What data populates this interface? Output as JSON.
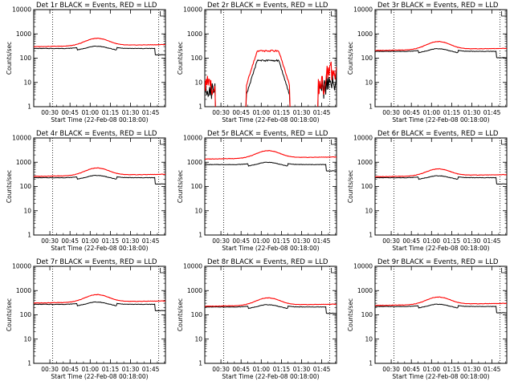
{
  "figure": {
    "y_label": "Counts/sec",
    "x_label": "Start Time (22-Feb-08 00:18:00)",
    "x_ticks": [
      "00:30",
      "00:45",
      "01:00",
      "01:15",
      "01:30",
      "01:45"
    ],
    "y_ticks": [
      "1",
      "10",
      "100",
      "1000",
      "10000"
    ],
    "colors": {
      "events": "#000000",
      "lld": "#ff0000",
      "axes": "#000000",
      "background": "#ffffff"
    }
  },
  "chart_data": [
    {
      "type": "line",
      "title": "Det 1r BLACK = Events, RED = LLD",
      "xlabel": "Start Time (22-Feb-08 00:18:00)",
      "ylabel": "Counts/sec",
      "yscale": "log",
      "ylim": [
        1,
        10000
      ],
      "xlim_minutes": [
        0,
        98
      ],
      "vlines_minutes": [
        14,
        93
      ],
      "kind": "normal",
      "events_base": 250,
      "lld_base": 330,
      "bump": 2.0
    },
    {
      "type": "line",
      "title": "Det 2r BLACK = Events, RED = LLD",
      "xlabel": "Start Time (22-Feb-08 00:18:00)",
      "ylabel": "Counts/sec",
      "yscale": "log",
      "ylim": [
        1,
        10000
      ],
      "xlim_minutes": [
        0,
        98
      ],
      "vlines_minutes": [
        14,
        93
      ],
      "kind": "noisy",
      "events_peak": 80,
      "lld_peak": 200
    },
    {
      "type": "line",
      "title": "Det 3r BLACK = Events, RED = LLD",
      "xlabel": "Start Time (22-Feb-08 00:18:00)",
      "ylabel": "Counts/sec",
      "yscale": "log",
      "ylim": [
        1,
        10000
      ],
      "xlim_minutes": [
        0,
        98
      ],
      "vlines_minutes": [
        14,
        93
      ],
      "kind": "normal",
      "events_base": 190,
      "lld_base": 230,
      "bump": 2.1
    },
    {
      "type": "line",
      "title": "Det 4r BLACK = Events, RED = LLD",
      "xlabel": "Start Time (22-Feb-08 00:18:00)",
      "ylabel": "Counts/sec",
      "yscale": "log",
      "ylim": [
        1,
        10000
      ],
      "xlim_minutes": [
        0,
        98
      ],
      "vlines_minutes": [
        14,
        93
      ],
      "kind": "normal",
      "events_base": 230,
      "lld_base": 290,
      "bump": 2.0
    },
    {
      "type": "line",
      "title": "Det 5r BLACK = Events, RED = LLD",
      "xlabel": "Start Time (22-Feb-08 00:18:00)",
      "ylabel": "Counts/sec",
      "yscale": "log",
      "ylim": [
        1,
        10000
      ],
      "xlim_minutes": [
        0,
        98
      ],
      "vlines_minutes": [
        14,
        93
      ],
      "kind": "normal",
      "events_base": 800,
      "lld_base": 1500,
      "bump": 2.0
    },
    {
      "type": "line",
      "title": "Det 6r BLACK = Events, RED = LLD",
      "xlabel": "Start Time (22-Feb-08 00:18:00)",
      "ylabel": "Counts/sec",
      "yscale": "log",
      "ylim": [
        1,
        10000
      ],
      "xlim_minutes": [
        0,
        98
      ],
      "vlines_minutes": [
        14,
        93
      ],
      "kind": "normal",
      "events_base": 230,
      "lld_base": 280,
      "bump": 1.9
    },
    {
      "type": "line",
      "title": "Det 7r BLACK = Events, RED = LLD",
      "xlabel": "Start Time (22-Feb-08 00:18:00)",
      "ylabel": "Counts/sec",
      "yscale": "log",
      "ylim": [
        1,
        10000
      ],
      "xlim_minutes": [
        0,
        98
      ],
      "vlines_minutes": [
        14,
        93
      ],
      "kind": "normal",
      "events_base": 270,
      "lld_base": 340,
      "bump": 2.0
    },
    {
      "type": "line",
      "title": "Det 8r BLACK = Events, RED = LLD",
      "xlabel": "Start Time (22-Feb-08 00:18:00)",
      "ylabel": "Counts/sec",
      "yscale": "log",
      "ylim": [
        1,
        10000
      ],
      "xlim_minutes": [
        0,
        98
      ],
      "vlines_minutes": [
        14,
        93
      ],
      "kind": "normal",
      "events_base": 210,
      "lld_base": 250,
      "bump": 2.0
    },
    {
      "type": "line",
      "title": "Det 9r BLACK = Events, RED = LLD",
      "xlabel": "Start Time (22-Feb-08 00:18:00)",
      "ylabel": "Counts/sec",
      "yscale": "log",
      "ylim": [
        1,
        10000
      ],
      "xlim_minutes": [
        0,
        98
      ],
      "vlines_minutes": [
        14,
        93
      ],
      "kind": "normal",
      "events_base": 220,
      "lld_base": 270,
      "bump": 2.0
    }
  ]
}
